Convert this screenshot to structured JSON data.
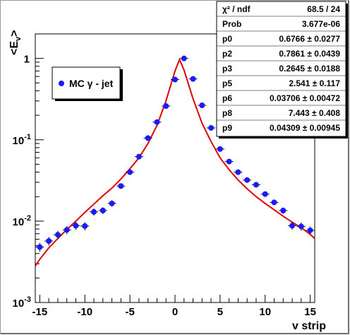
{
  "chart_data": {
    "type": "scatter",
    "title": "",
    "xlabel": "v strip",
    "ylabel_parts": {
      "main": "<E",
      "sub": "v",
      "end": ">"
    },
    "xlim": [
      -15.5,
      15.5
    ],
    "ylim": [
      0.001,
      2
    ],
    "y_scale": "log",
    "x_ticks": [
      -15,
      -10,
      -5,
      0,
      5,
      10,
      15
    ],
    "y_ticks": [
      {
        "value": 1,
        "base": "1",
        "exp": ""
      },
      {
        "value": 0.1,
        "base": "10",
        "exp": "-1"
      },
      {
        "value": 0.01,
        "base": "10",
        "exp": "-2"
      },
      {
        "value": 0.001,
        "base": "10",
        "exp": "-3"
      }
    ],
    "grid": false,
    "legend": {
      "placement": "upper-left",
      "marker_color": "#1a1aff",
      "label": "MC γ - jet"
    },
    "series": [
      {
        "name": "MC γ - jet",
        "kind": "points",
        "color": "#1a1aff",
        "x": [
          -15,
          -14,
          -13,
          -12,
          -11,
          -10,
          -9,
          -8,
          -7,
          -6,
          -5,
          -4,
          -3,
          -2,
          -1,
          0,
          1,
          2,
          3,
          4,
          5,
          6,
          7,
          8,
          9,
          10,
          11,
          12,
          13,
          14,
          15
        ],
        "y": [
          0.0048,
          0.0057,
          0.0068,
          0.0078,
          0.0088,
          0.0087,
          0.013,
          0.0135,
          0.0165,
          0.027,
          0.04,
          0.062,
          0.105,
          0.165,
          0.26,
          0.55,
          1.0,
          0.56,
          0.265,
          0.14,
          0.077,
          0.054,
          0.04,
          0.032,
          0.028,
          0.0215,
          0.017,
          0.0135,
          0.0088,
          0.0086,
          0.0077
        ],
        "yerr": [
          0.0006,
          0.0007,
          0.0008,
          0.0009,
          0.001,
          0.001,
          0.0013,
          0.0013,
          0.0015,
          0.002,
          0.0025,
          0.003,
          0.004,
          0.005,
          0.006,
          0.01,
          0.015,
          0.01,
          0.006,
          0.004,
          0.003,
          0.0025,
          0.002,
          0.0018,
          0.0016,
          0.0015,
          0.0013,
          0.0012,
          0.001,
          0.001,
          0.0009
        ]
      },
      {
        "name": "",
        "kind": "fit",
        "color": "#e00000",
        "x": [
          -15.5,
          -15,
          -14,
          -13,
          -12,
          -11,
          -10,
          -9,
          -8,
          -7,
          -6,
          -5,
          -4,
          -3,
          -2,
          -1,
          0,
          0.5,
          1,
          2,
          3,
          4,
          5,
          6,
          7,
          8,
          9,
          10,
          11,
          12,
          13,
          14,
          15,
          15.5
        ],
        "y": [
          0.0028,
          0.0034,
          0.0047,
          0.0061,
          0.0079,
          0.01,
          0.0128,
          0.0162,
          0.0205,
          0.0255,
          0.033,
          0.044,
          0.06,
          0.09,
          0.15,
          0.3,
          0.7,
          0.97,
          0.72,
          0.32,
          0.16,
          0.095,
          0.06,
          0.043,
          0.032,
          0.025,
          0.02,
          0.0165,
          0.0138,
          0.0115,
          0.0097,
          0.0083,
          0.0069,
          0.0061
        ]
      }
    ],
    "stats_box": {
      "rows": [
        {
          "name": "χ² / ndf",
          "value": "68.5 / 24"
        },
        {
          "name": "Prob",
          "value": "3.677e-06"
        },
        {
          "name": "p0",
          "value": "0.6766 ± 0.0277"
        },
        {
          "name": "p2",
          "value": "0.7861 ± 0.0439"
        },
        {
          "name": "p3",
          "value": "0.2645 ± 0.0188"
        },
        {
          "name": "p5",
          "value": "2.541 ± 0.117"
        },
        {
          "name": "p6",
          "value": "0.03706 ± 0.00472"
        },
        {
          "name": "p8",
          "value": "7.443 ± 0.408"
        },
        {
          "name": "p9",
          "value": "0.04309 ± 0.00945"
        }
      ]
    }
  }
}
